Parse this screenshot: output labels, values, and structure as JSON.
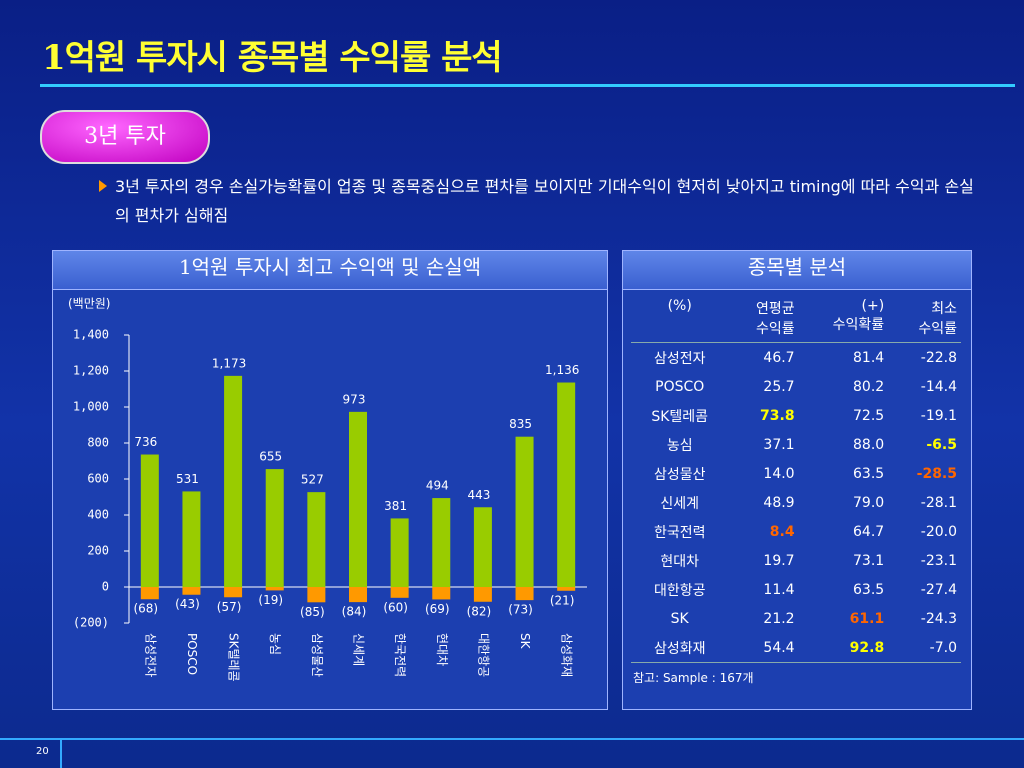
{
  "header": {
    "title": "1억원 투자시 종목별 수익률 분석",
    "badge": "3년 투자",
    "bullet": "3년 투자의 경우 손실가능확률이 업종 및 종목중심으로 편차를 보이지만 기대수익이 현저히 낮아지고 timing에 따라 수익과 손실의 편차가 심해짐"
  },
  "chart_data": {
    "type": "bar",
    "title": "1억원 투자시 최고 수익액 및 손실액",
    "unit": "(백만원)",
    "categories": [
      "삼성전자",
      "POSCO",
      "SK텔레콤",
      "농심",
      "삼성물산",
      "신세계",
      "한국전력",
      "현대차",
      "대한항공",
      "SK",
      "삼성화재"
    ],
    "series": [
      {
        "color": "#99cc00",
        "values": [
          736,
          531,
          1173,
          655,
          527,
          973,
          381,
          494,
          443,
          835,
          1136
        ],
        "value_labels": [
          "736",
          "531",
          "1,173",
          "655",
          "527",
          "973",
          "381",
          "494",
          "443",
          "835",
          "1,136"
        ]
      },
      {
        "color": "#ff9900",
        "values": [
          -68,
          -43,
          -57,
          -19,
          -85,
          -84,
          -60,
          -69,
          -82,
          -73,
          -21
        ],
        "value_labels": [
          "(68)",
          "(43)",
          "(57)",
          "(19)",
          "(85)",
          "(84)",
          "(60)",
          "(69)",
          "(82)",
          "(73)",
          "(21)"
        ]
      }
    ],
    "ylim": [
      -200,
      1400
    ],
    "yticks": [
      {
        "value": -200,
        "label": "(200)"
      },
      0,
      200,
      400,
      600,
      800,
      {
        "value": 1000,
        "label": "1,000"
      },
      {
        "value": 1200,
        "label": "1,200"
      },
      {
        "value": 1400,
        "label": "1,400"
      }
    ]
  },
  "table": {
    "title": "종목별 분석",
    "columns": [
      "(%)",
      "연평균\n수익률",
      "(+)\n수익확률",
      "최소\n수익률"
    ],
    "rows": [
      [
        "삼성전자",
        "46.7",
        "81.4",
        "-22.8"
      ],
      [
        "POSCO",
        "25.7",
        "80.2",
        "-14.4"
      ],
      [
        "SK텔레콤",
        "73.8",
        "72.5",
        "-19.1"
      ],
      [
        "농심",
        "37.1",
        "88.0",
        "-6.5"
      ],
      [
        "삼성물산",
        "14.0",
        "63.5",
        "-28.5"
      ],
      [
        "신세계",
        "48.9",
        "79.0",
        "-28.1"
      ],
      [
        "한국전력",
        "8.4",
        "64.7",
        "-20.0"
      ],
      [
        "현대차",
        "19.7",
        "73.1",
        "-23.1"
      ],
      [
        "대한항공",
        "11.4",
        "63.5",
        "-27.4"
      ],
      [
        "SK",
        "21.2",
        "61.1",
        "-24.3"
      ],
      [
        "삼성화재",
        "54.4",
        "92.8",
        "-7.0"
      ]
    ],
    "note": "참고: Sample : 167개"
  },
  "page_number": "20"
}
